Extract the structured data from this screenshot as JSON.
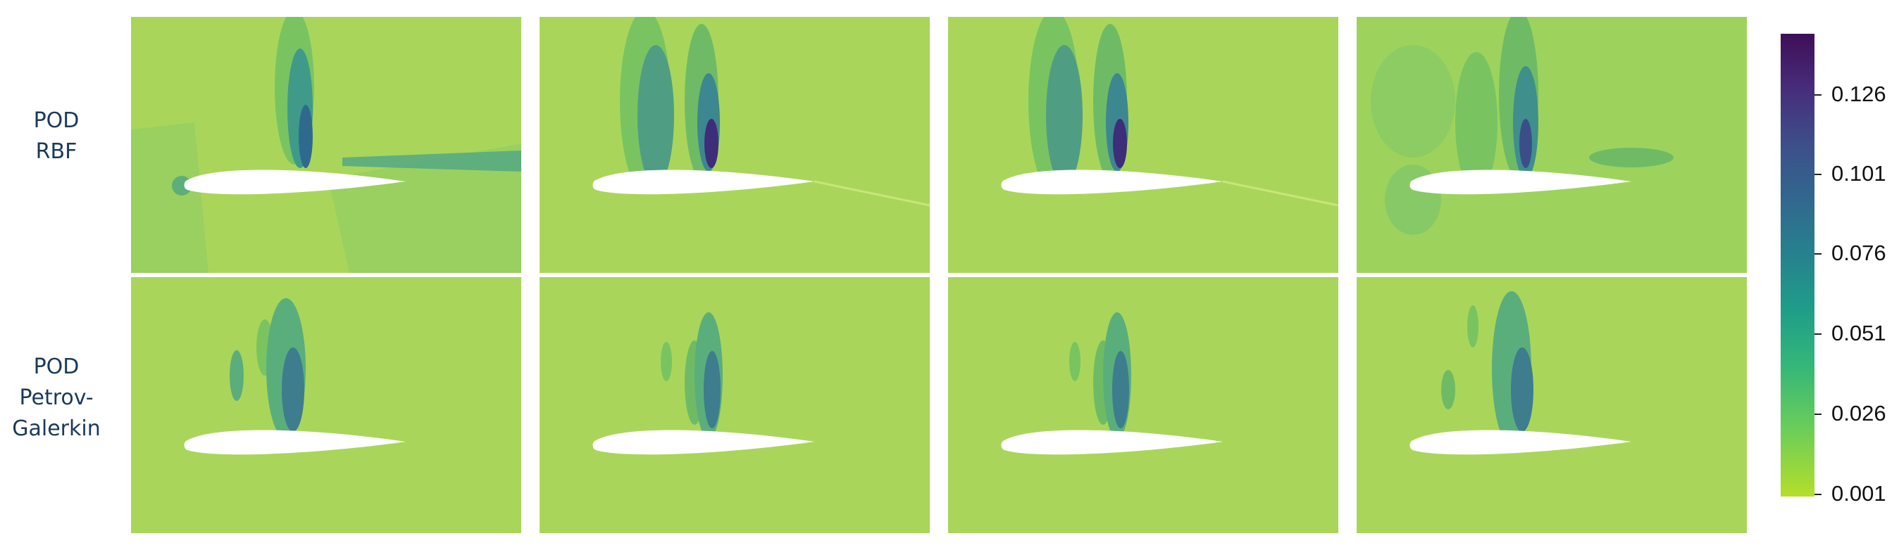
{
  "rows": [
    {
      "label_lines": [
        "POD",
        "RBF"
      ]
    },
    {
      "label_lines": [
        "POD",
        "Petrov-",
        "Galerkin"
      ]
    }
  ],
  "colorbar": {
    "ticks": [
      "0.126",
      "0.101",
      "0.076",
      "0.051",
      "0.026",
      "0.001"
    ],
    "colormap": "viridis",
    "colors": {
      "min": "#b5de2b",
      "max": "#3e0f57"
    }
  },
  "panel_grid": {
    "rows": 2,
    "columns": 4,
    "background_color": "#a9d65a"
  }
}
